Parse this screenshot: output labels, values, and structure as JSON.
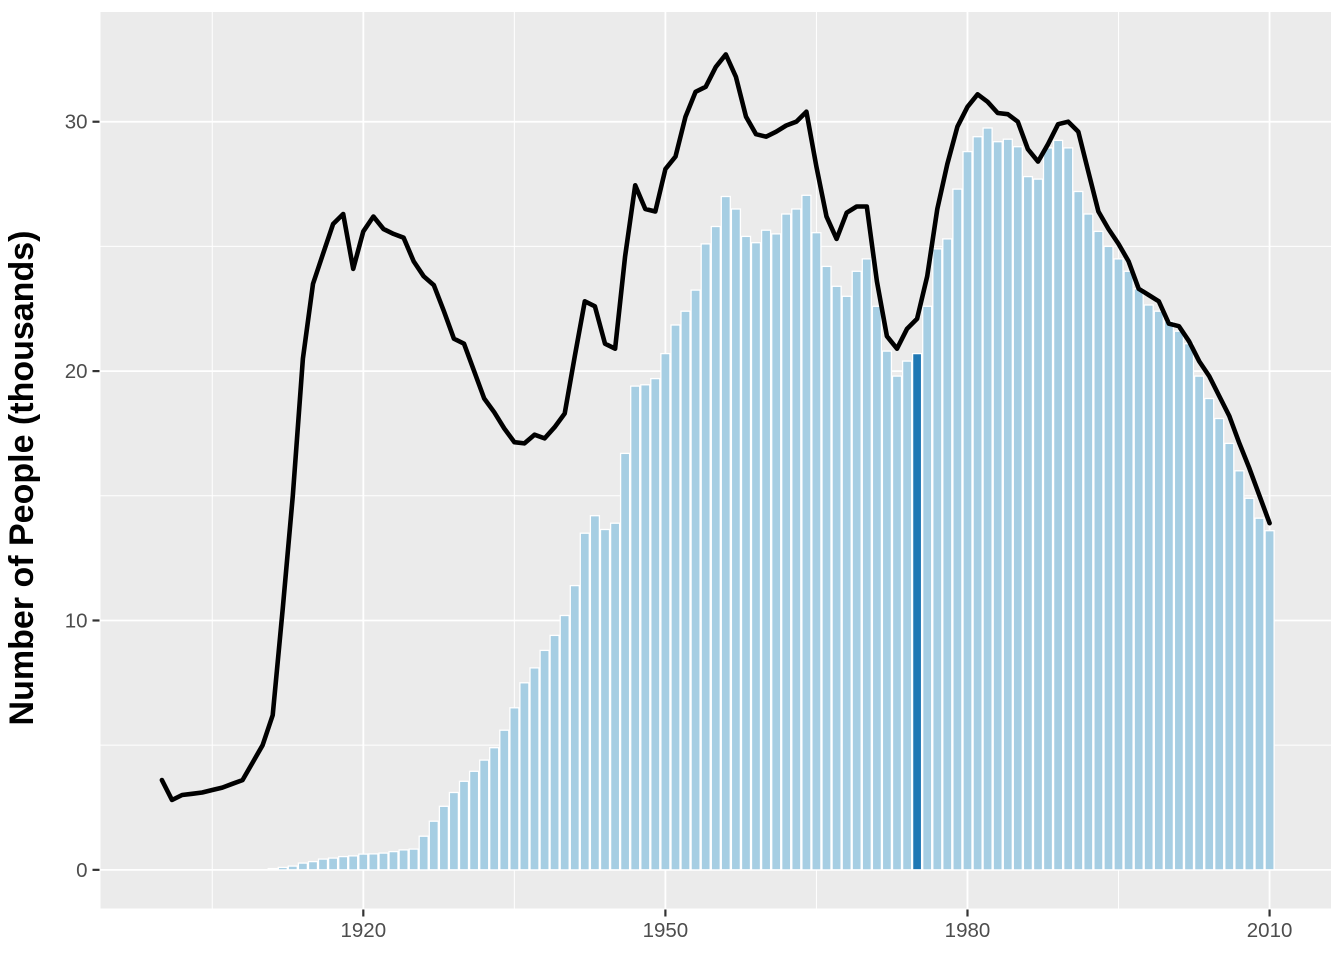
{
  "chart_data": {
    "type": "bar+line",
    "title": "",
    "xlabel": "",
    "ylabel": "Number of People (thousands)",
    "panel_bg": "#EBEBEB",
    "grid_color": "#FFFFFF",
    "axis_text_color": "#4D4D4D",
    "tick_color": "#333333",
    "bar_fill": "#A6CEE3",
    "bar_stroke": "#FFFFFF",
    "highlight_fill": "#1F78B4",
    "line_color": "#000000",
    "legend": "none",
    "grid": "on",
    "x_ticks": [
      1920,
      1950,
      1980,
      2010
    ],
    "x_minor": [
      1905,
      1935,
      1965,
      1995
    ],
    "y_ticks": [
      0,
      10,
      20,
      30
    ],
    "y_minor": [
      5,
      15,
      25
    ],
    "xlim": [
      1893.9,
      2016.1
    ],
    "ylim": [
      -1.55,
      34.4
    ],
    "highlight_year": 1975,
    "bars": {
      "start_year": 1911,
      "values": [
        0.05,
        0.1,
        0.15,
        0.27,
        0.33,
        0.43,
        0.47,
        0.53,
        0.56,
        0.63,
        0.64,
        0.67,
        0.73,
        0.8,
        0.83,
        1.35,
        1.95,
        2.55,
        3.1,
        3.55,
        3.95,
        4.4,
        4.9,
        5.6,
        6.5,
        7.5,
        8.1,
        8.8,
        9.4,
        10.2,
        11.4,
        13.5,
        14.2,
        13.65,
        13.9,
        16.7,
        19.4,
        19.45,
        19.7,
        20.7,
        21.85,
        22.4,
        23.25,
        25.1,
        25.8,
        27.0,
        26.5,
        25.4,
        25.15,
        25.65,
        25.5,
        26.3,
        26.5,
        27.05,
        25.55,
        24.2,
        23.4,
        23.0,
        24.0,
        24.5,
        22.6,
        20.8,
        19.8,
        20.4,
        20.7,
        22.6,
        24.9,
        25.3,
        27.3,
        28.8,
        29.4,
        29.75,
        29.2,
        29.3,
        29.0,
        27.8,
        27.7,
        28.95,
        29.25,
        28.95,
        27.2,
        26.3,
        25.6,
        25.0,
        24.5,
        24.0,
        23.3,
        22.65,
        22.4,
        22.0,
        21.6,
        21.1,
        19.8,
        18.9,
        18.1,
        17.1,
        16.0,
        14.9,
        14.1,
        13.6
      ]
    },
    "line": {
      "start_year": 1900,
      "values": [
        3.6,
        2.8,
        3.0,
        3.05,
        3.1,
        3.2,
        3.3,
        3.45,
        3.6,
        4.3,
        5.0,
        6.2,
        10.5,
        15.0,
        20.5,
        23.5,
        24.7,
        25.9,
        26.3,
        24.1,
        25.6,
        26.2,
        25.7,
        25.5,
        25.35,
        24.4,
        23.8,
        23.45,
        22.4,
        21.3,
        21.1,
        20.0,
        18.9,
        18.35,
        17.7,
        17.15,
        17.1,
        17.45,
        17.3,
        17.75,
        18.3,
        20.6,
        22.8,
        22.6,
        21.1,
        20.9,
        24.6,
        27.45,
        26.5,
        26.4,
        28.1,
        28.6,
        30.2,
        31.2,
        31.4,
        32.2,
        32.7,
        31.8,
        30.2,
        29.5,
        29.4,
        29.6,
        29.85,
        30.0,
        30.4,
        28.2,
        26.2,
        25.3,
        26.35,
        26.6,
        26.6,
        23.6,
        21.4,
        20.9,
        21.7,
        22.1,
        23.8,
        26.5,
        28.3,
        29.8,
        30.6,
        31.1,
        30.8,
        30.35,
        30.3,
        30.0,
        28.9,
        28.4,
        29.1,
        29.9,
        30.0,
        29.6,
        28.0,
        26.4,
        25.7,
        25.1,
        24.4,
        23.3,
        23.05,
        22.8,
        21.9,
        21.8,
        21.2,
        20.4,
        19.8,
        19.0,
        18.2,
        17.1,
        16.1,
        15.0,
        13.9
      ]
    }
  }
}
